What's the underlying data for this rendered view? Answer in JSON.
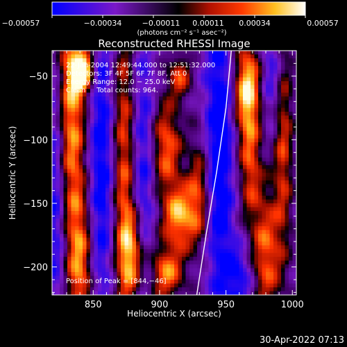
{
  "chart_data": {
    "type": "heatmap",
    "title": "Reconstructed RHESSI Image",
    "xlabel": "Heliocentric X (arcsec)",
    "ylabel": "Heliocentric Y (arcsec)",
    "xlim": [
      819,
      1003
    ],
    "ylim": [
      -222,
      -30
    ],
    "x_ticks": [
      {
        "value": 850,
        "label": "850"
      },
      {
        "value": 900,
        "label": "900"
      },
      {
        "value": 950,
        "label": "950"
      },
      {
        "value": 1000,
        "label": "1000"
      }
    ],
    "y_ticks": [
      {
        "value": -50,
        "label": "−50"
      },
      {
        "value": -100,
        "label": "−100"
      },
      {
        "value": -150,
        "label": "−150"
      },
      {
        "value": -200,
        "label": "−200"
      }
    ],
    "colorbar": {
      "range": [
        -0.00057,
        0.00057
      ],
      "tick_labels": [
        "−0.00057",
        "−0.00034",
        "−0.00011",
        "0.00011",
        "0.00034",
        "0.00057"
      ],
      "unit_label": "(photons cm⁻² s⁻¹ asec⁻²)"
    },
    "info_lines": [
      "22-Jan-2004 12:49:44.000 to 12:51:32.000",
      "Detectors: 3F 4F 5F 6F 7F 8F, Att 0",
      "Energy Range: 12.0 − 25.0 keV",
      "Clean     Total counts: 964."
    ],
    "peak_label": "Position of Peak = [844,−46]",
    "peak": [
      844,
      -46
    ],
    "limb_curve": [
      [
        928,
        -222
      ],
      [
        935,
        -175
      ],
      [
        943,
        -125
      ],
      [
        950,
        -75
      ],
      [
        954,
        -30
      ]
    ],
    "bands": [
      {
        "x": 833,
        "y": -80,
        "sx": 8,
        "sy": 70,
        "amp": 0.8
      },
      {
        "x": 842,
        "y": -46,
        "sx": 6,
        "sy": 12,
        "amp": 1.0
      },
      {
        "x": 840,
        "y": -200,
        "sx": 7,
        "sy": 40,
        "amp": 0.65
      },
      {
        "x": 873,
        "y": -120,
        "sx": 6,
        "sy": 90,
        "amp": 0.6
      },
      {
        "x": 880,
        "y": -190,
        "sx": 7,
        "sy": 25,
        "amp": 0.7
      },
      {
        "x": 905,
        "y": -105,
        "sx": 8,
        "sy": 25,
        "amp": 0.65
      },
      {
        "x": 915,
        "y": -50,
        "sx": 6,
        "sy": 12,
        "amp": 0.55
      },
      {
        "x": 915,
        "y": -160,
        "sx": 9,
        "sy": 18,
        "amp": 0.8
      },
      {
        "x": 905,
        "y": -205,
        "sx": 9,
        "sy": 15,
        "amp": 0.7
      },
      {
        "x": 930,
        "y": -140,
        "sx": 6,
        "sy": 30,
        "amp": 0.55
      },
      {
        "x": 966,
        "y": -60,
        "sx": 7,
        "sy": 25,
        "amp": 0.95
      },
      {
        "x": 968,
        "y": -120,
        "sx": 6,
        "sy": 30,
        "amp": 0.55
      },
      {
        "x": 980,
        "y": -190,
        "sx": 8,
        "sy": 35,
        "amp": 0.65
      },
      {
        "x": 993,
        "y": -100,
        "sx": 5,
        "sy": 60,
        "amp": 0.55
      }
    ],
    "dips": [
      {
        "x": 822,
        "y": -140,
        "sx": 6,
        "sy": 80,
        "amp": 0.7
      },
      {
        "x": 856,
        "y": -120,
        "sx": 7,
        "sy": 90,
        "amp": 0.75
      },
      {
        "x": 888,
        "y": -130,
        "sx": 6,
        "sy": 90,
        "amp": 0.6
      },
      {
        "x": 945,
        "y": -110,
        "sx": 8,
        "sy": 90,
        "amp": 0.85
      },
      {
        "x": 985,
        "y": -50,
        "sx": 6,
        "sy": 30,
        "amp": 0.5
      },
      {
        "x": 960,
        "y": -210,
        "sx": 8,
        "sy": 20,
        "amp": 0.6
      }
    ]
  },
  "timestamp": "30-Apr-2022 07:13"
}
